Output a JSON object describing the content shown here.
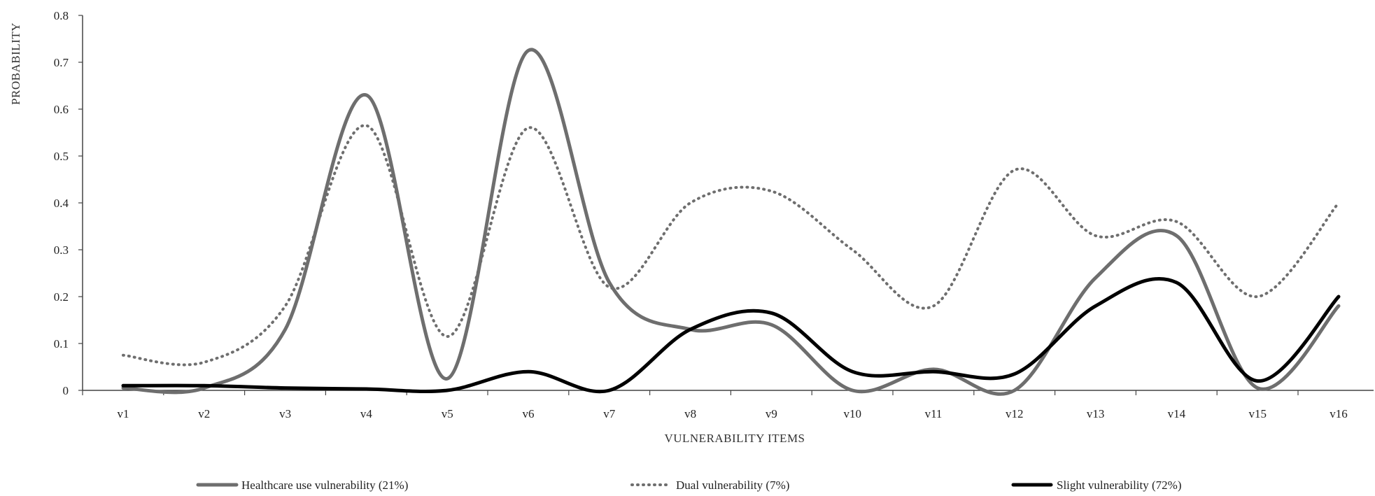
{
  "chart_data": {
    "type": "line",
    "title": "",
    "xlabel": "VULNERABILITY ITEMS",
    "ylabel": "PROBABILITY",
    "categories": [
      "v1",
      "v2",
      "v3",
      "v4",
      "v5",
      "v6",
      "v7",
      "v8",
      "v9",
      "v10",
      "v11",
      "v12",
      "v13",
      "v14",
      "v15",
      "v16"
    ],
    "ylim": [
      0,
      0.8
    ],
    "yticks": [
      "0",
      "0.1",
      "0.2",
      "0.3",
      "0.4",
      "0.5",
      "0.6",
      "0.7",
      "0.8"
    ],
    "grid": false,
    "legend_position": "bottom",
    "series": [
      {
        "name": "Healthcare use vulnerability (21%)",
        "color": "#6e6e6e",
        "style": "solid",
        "values": [
          0.005,
          0.005,
          0.13,
          0.63,
          0.025,
          0.725,
          0.23,
          0.13,
          0.14,
          0.0,
          0.045,
          0.0,
          0.24,
          0.33,
          0.005,
          0.18
        ]
      },
      {
        "name": "Dual vulnerability (7%)",
        "color": "#6e6e6e",
        "style": "dotted",
        "values": [
          0.075,
          0.06,
          0.18,
          0.565,
          0.115,
          0.56,
          0.22,
          0.4,
          0.425,
          0.3,
          0.18,
          0.47,
          0.33,
          0.36,
          0.2,
          0.4
        ]
      },
      {
        "name": "Slight vulnerability (72%)",
        "color": "#000000",
        "style": "solid",
        "values": [
          0.01,
          0.01,
          0.005,
          0.003,
          0.0,
          0.04,
          0.0,
          0.13,
          0.165,
          0.04,
          0.04,
          0.035,
          0.18,
          0.23,
          0.02,
          0.2
        ]
      }
    ]
  }
}
